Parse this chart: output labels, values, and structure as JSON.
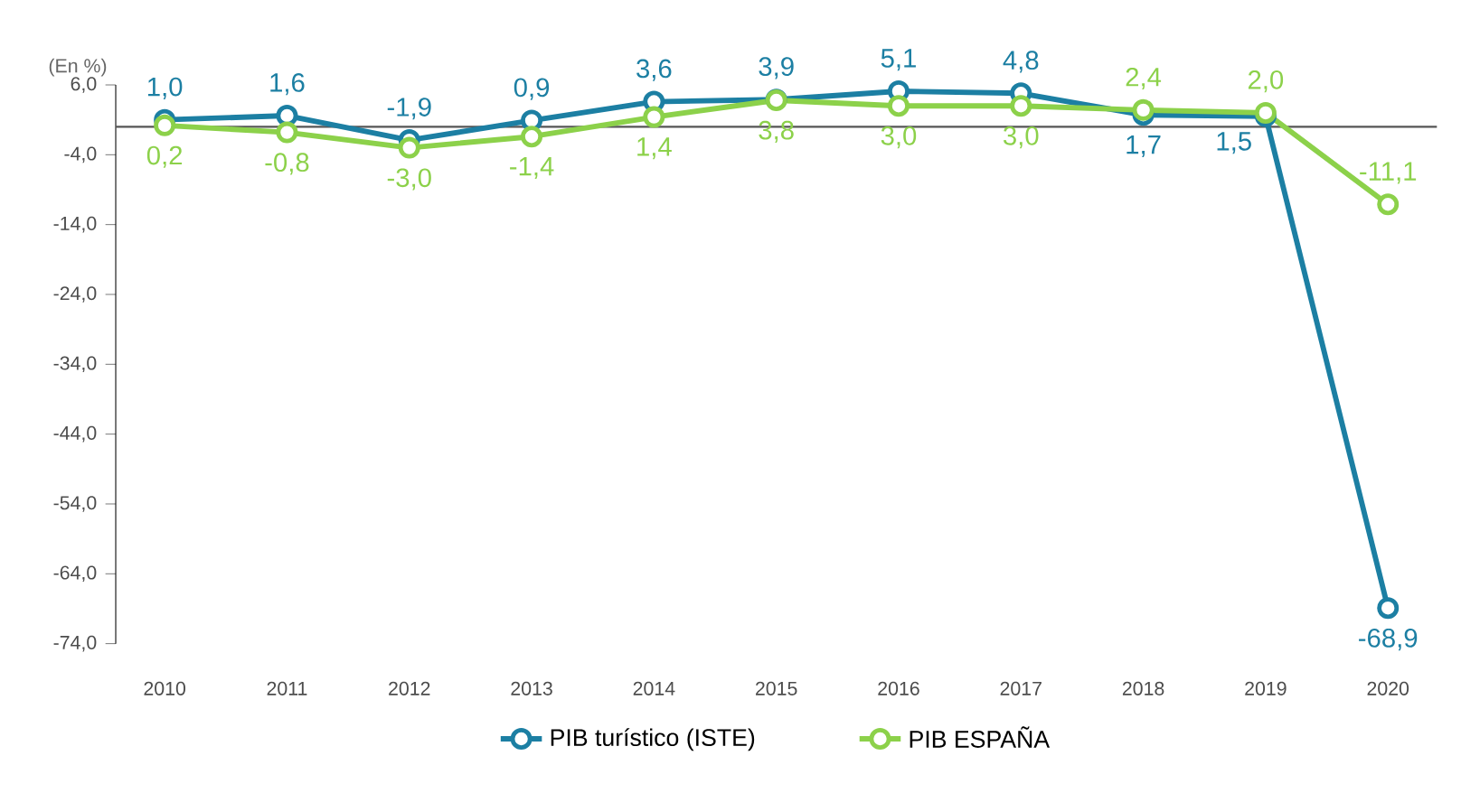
{
  "chart_data": {
    "type": "line",
    "ylabel": "(En %)",
    "categories": [
      "2010",
      "2011",
      "2012",
      "2013",
      "2014",
      "2015",
      "2016",
      "2017",
      "2018",
      "2019",
      "2020"
    ],
    "series": [
      {
        "name": "PIB turístico (ISTE)",
        "color": "#1c7fa3",
        "values": [
          1.0,
          1.6,
          -1.9,
          0.9,
          3.6,
          3.9,
          5.1,
          4.8,
          1.7,
          1.5,
          -68.9
        ],
        "value_labels": [
          "1,0",
          "1,6",
          "-1,9",
          "0,9",
          "3,6",
          "3,9",
          "5,1",
          "4,8",
          "1,7",
          "1,5",
          "-68,9"
        ]
      },
      {
        "name": "PIB ESPAÑA",
        "color": "#8cd14a",
        "values": [
          0.2,
          -0.8,
          -3.0,
          -1.4,
          1.4,
          3.8,
          3.0,
          3.0,
          2.4,
          2.0,
          -11.1
        ],
        "value_labels": [
          "0,2",
          "-0,8",
          "-3,0",
          "-1,4",
          "1,4",
          "3,8",
          "3,0",
          "3,0",
          "2,4",
          "2,0",
          "-11,1"
        ]
      }
    ],
    "ylim": [
      -74,
      6
    ],
    "yticks": [
      {
        "value": 6,
        "label": "6,0"
      },
      {
        "value": -4,
        "label": "-4,0"
      },
      {
        "value": -14,
        "label": "-14,0"
      },
      {
        "value": -24,
        "label": "-24,0"
      },
      {
        "value": -34,
        "label": "-34,0"
      },
      {
        "value": -44,
        "label": "-44,0"
      },
      {
        "value": -54,
        "label": "-54,0"
      },
      {
        "value": -64,
        "label": "-64,0"
      },
      {
        "value": -74,
        "label": "-74,0"
      }
    ],
    "ref_lines": [
      {
        "axis": "y",
        "value": 0,
        "color": "#555555"
      }
    ],
    "marker": "circle",
    "line_style": "solid",
    "grid": false,
    "legend": "bottom"
  }
}
